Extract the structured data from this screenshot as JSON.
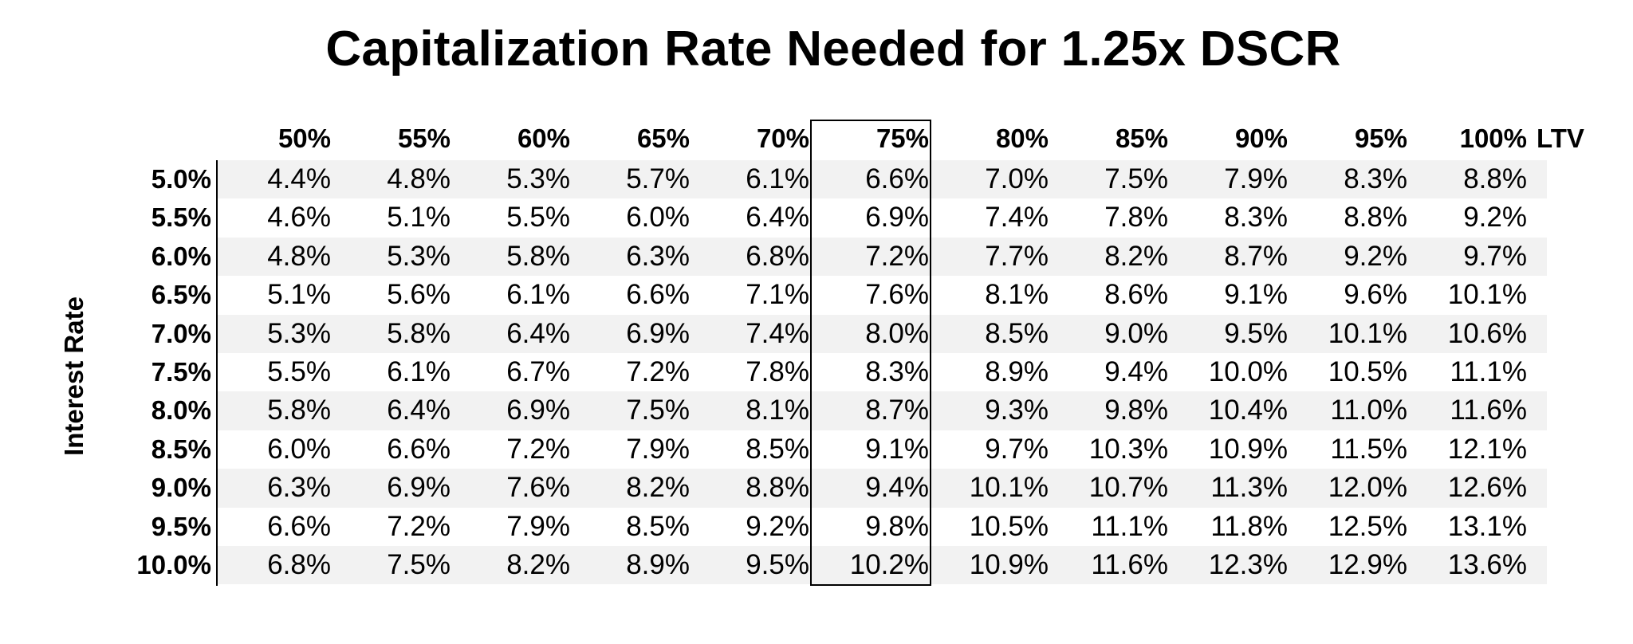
{
  "chart_data": {
    "type": "table",
    "title": "Capitalization Rate Needed for 1.25x DSCR",
    "row_axis_label": "Interest Rate",
    "column_axis_label": "LTV",
    "highlighted_column": "75%",
    "columns": [
      "50%",
      "55%",
      "60%",
      "65%",
      "70%",
      "75%",
      "80%",
      "85%",
      "90%",
      "95%",
      "100%"
    ],
    "rows": [
      {
        "rate": "5.0%",
        "values": [
          "4.4%",
          "4.8%",
          "5.3%",
          "5.7%",
          "6.1%",
          "6.6%",
          "7.0%",
          "7.5%",
          "7.9%",
          "8.3%",
          "8.8%"
        ]
      },
      {
        "rate": "5.5%",
        "values": [
          "4.6%",
          "5.1%",
          "5.5%",
          "6.0%",
          "6.4%",
          "6.9%",
          "7.4%",
          "7.8%",
          "8.3%",
          "8.8%",
          "9.2%"
        ]
      },
      {
        "rate": "6.0%",
        "values": [
          "4.8%",
          "5.3%",
          "5.8%",
          "6.3%",
          "6.8%",
          "7.2%",
          "7.7%",
          "8.2%",
          "8.7%",
          "9.2%",
          "9.7%"
        ]
      },
      {
        "rate": "6.5%",
        "values": [
          "5.1%",
          "5.6%",
          "6.1%",
          "6.6%",
          "7.1%",
          "7.6%",
          "8.1%",
          "8.6%",
          "9.1%",
          "9.6%",
          "10.1%"
        ]
      },
      {
        "rate": "7.0%",
        "values": [
          "5.3%",
          "5.8%",
          "6.4%",
          "6.9%",
          "7.4%",
          "8.0%",
          "8.5%",
          "9.0%",
          "9.5%",
          "10.1%",
          "10.6%"
        ]
      },
      {
        "rate": "7.5%",
        "values": [
          "5.5%",
          "6.1%",
          "6.7%",
          "7.2%",
          "7.8%",
          "8.3%",
          "8.9%",
          "9.4%",
          "10.0%",
          "10.5%",
          "11.1%"
        ]
      },
      {
        "rate": "8.0%",
        "values": [
          "5.8%",
          "6.4%",
          "6.9%",
          "7.5%",
          "8.1%",
          "8.7%",
          "9.3%",
          "9.8%",
          "10.4%",
          "11.0%",
          "11.6%"
        ]
      },
      {
        "rate": "8.5%",
        "values": [
          "6.0%",
          "6.6%",
          "7.2%",
          "7.9%",
          "8.5%",
          "9.1%",
          "9.7%",
          "10.3%",
          "10.9%",
          "11.5%",
          "12.1%"
        ]
      },
      {
        "rate": "9.0%",
        "values": [
          "6.3%",
          "6.9%",
          "7.6%",
          "8.2%",
          "8.8%",
          "9.4%",
          "10.1%",
          "10.7%",
          "11.3%",
          "12.0%",
          "12.6%"
        ]
      },
      {
        "rate": "9.5%",
        "values": [
          "6.6%",
          "7.2%",
          "7.9%",
          "8.5%",
          "9.2%",
          "9.8%",
          "10.5%",
          "11.1%",
          "11.8%",
          "12.5%",
          "13.1%"
        ]
      },
      {
        "rate": "10.0%",
        "values": [
          "6.8%",
          "7.5%",
          "8.2%",
          "8.9%",
          "9.5%",
          "10.2%",
          "10.9%",
          "11.6%",
          "12.3%",
          "12.9%",
          "13.6%"
        ]
      }
    ],
    "band_color": "#f2f2f2"
  }
}
